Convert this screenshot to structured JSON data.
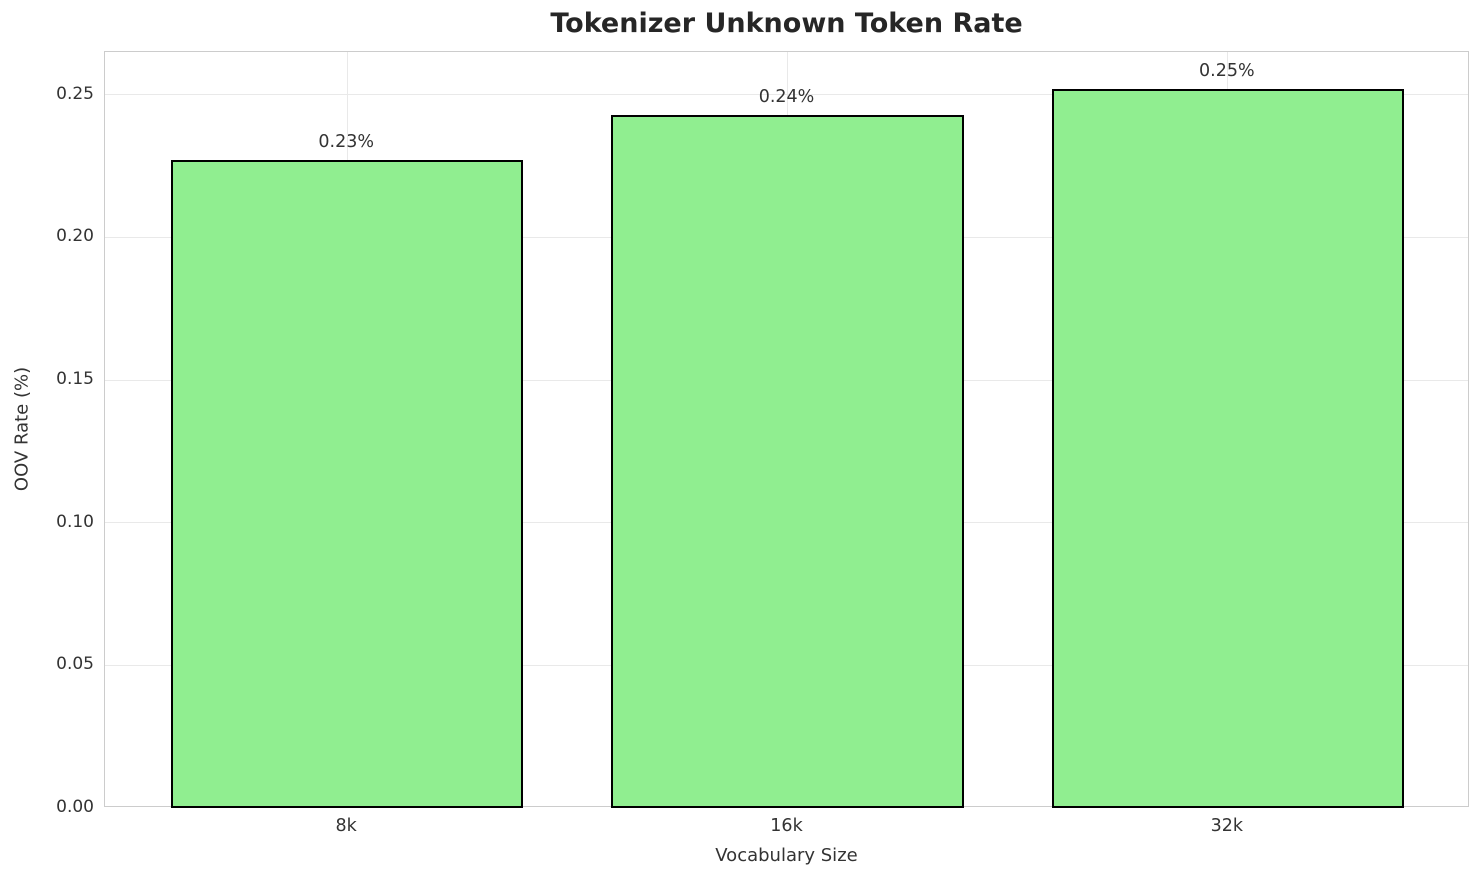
{
  "chart_data": {
    "type": "bar",
    "title": "Tokenizer Unknown Token Rate",
    "xlabel": "Vocabulary Size",
    "ylabel": "OOV Rate (%)",
    "categories": [
      "8k",
      "16k",
      "32k"
    ],
    "values": [
      0.227,
      0.243,
      0.252
    ],
    "bar_labels": [
      "0.23%",
      "0.24%",
      "0.25%"
    ],
    "ylim": [
      0,
      0.265
    ],
    "xlim": [
      -0.55,
      2.55
    ],
    "yticks": [
      0.0,
      0.05,
      0.1,
      0.15,
      0.2,
      0.25
    ],
    "ytick_labels": [
      "0.00",
      "0.05",
      "0.10",
      "0.15",
      "0.20",
      "0.25"
    ],
    "bar_width_units": 0.8,
    "grid": true,
    "legend": "none",
    "colors": {
      "bar_fill": "#90EE90",
      "bar_edge": "#000000",
      "grid": "#E9E9E9",
      "spine": "#CCCCCC",
      "title_text": "#262626",
      "tick_text": "#333333",
      "background": "#FFFFFF"
    }
  }
}
